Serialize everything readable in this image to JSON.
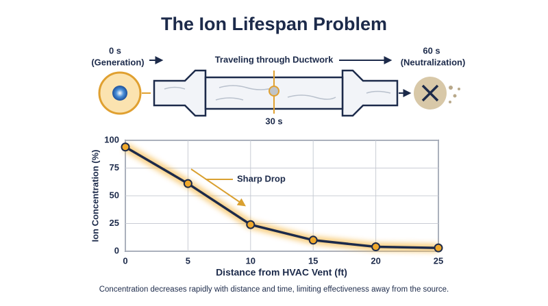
{
  "title": "The Ion Lifespan Problem",
  "diagram": {
    "start_time": "0 s",
    "start_label": "(Generation)",
    "middle_label": "Traveling through Ductwork",
    "mid_time": "30 s",
    "end_time": "60 s",
    "end_label": "(Neutralization)"
  },
  "chart_data": {
    "type": "line",
    "x": [
      0,
      5,
      10,
      15,
      20,
      25
    ],
    "values": [
      94,
      61,
      24,
      10,
      4,
      3
    ],
    "xlim": [
      0,
      25
    ],
    "xticks": [
      0,
      5,
      10,
      15,
      20,
      25
    ],
    "ylim": [
      0,
      100
    ],
    "yticks": [
      0,
      25,
      50,
      75,
      100
    ],
    "x_label": "Distance from HVAC Vent (ft)",
    "y_label": "Ion Concentration (%)",
    "annotation": "Sharp Drop",
    "grid": true,
    "color": "#1c2a4a",
    "marker_color": "#f0a92c",
    "glow_color": "#f5b94a"
  },
  "caption": "Concentration decreases rapidly with distance and time, limiting effectiveness away from the source."
}
